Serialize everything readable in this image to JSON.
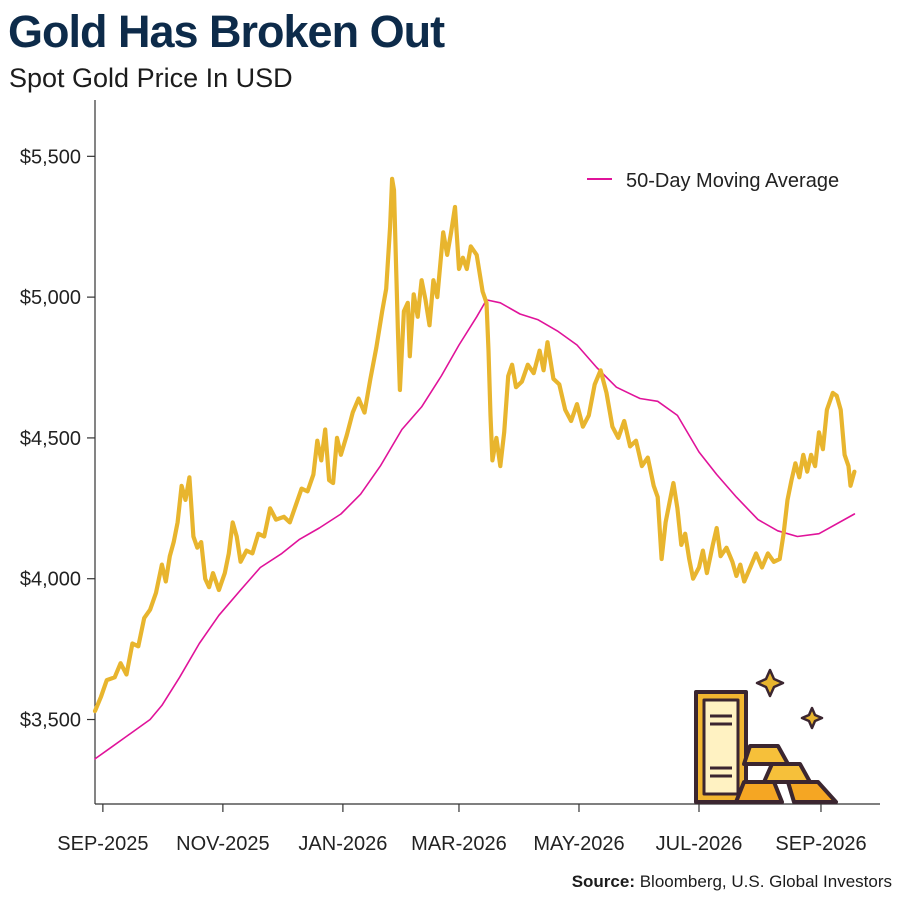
{
  "header": {
    "title": "Gold Has Broken Out",
    "subtitle": "Spot Gold Price In USD"
  },
  "source": {
    "label": "Source:",
    "text": "Bloomberg, U.S. Global Investors"
  },
  "colors": {
    "title": "#0d2b4a",
    "price_line": "#e8b52e",
    "ma_line": "#e0139a",
    "axis": "#333333"
  },
  "illustration": "gold-bars-icon",
  "chart_data": {
    "type": "line",
    "title": "Gold Has Broken Out",
    "subtitle": "Spot Gold Price In USD",
    "xlabel": "",
    "ylabel": "",
    "x_range": [
      "2025-08-28",
      "2026-10-01"
    ],
    "ylim": [
      3200,
      5700
    ],
    "yticks": [
      3500,
      4000,
      4500,
      5000,
      5500
    ],
    "ytick_labels": [
      "$3,500",
      "$4,000",
      "$4,500",
      "$5,000",
      "$5,500"
    ],
    "xticks": [
      "2025-09-01",
      "2025-11-01",
      "2026-01-01",
      "2026-03-01",
      "2026-05-01",
      "2026-07-01",
      "2026-09-01"
    ],
    "xtick_labels": [
      "SEP-2025",
      "NOV-2025",
      "JAN-2026",
      "MAR-2026",
      "MAY-2026",
      "JUL-2026",
      "SEP-2026"
    ],
    "grid": false,
    "legend": {
      "position": "top-right",
      "entries": [
        "50-Day Moving Average"
      ]
    },
    "series": [
      {
        "key": "spot",
        "points": [
          [
            "2025-08-28",
            3530
          ],
          [
            "2025-08-31",
            3580
          ],
          [
            "2025-09-03",
            3640
          ],
          [
            "2025-09-07",
            3650
          ],
          [
            "2025-09-10",
            3700
          ],
          [
            "2025-09-13",
            3660
          ],
          [
            "2025-09-16",
            3770
          ],
          [
            "2025-09-19",
            3760
          ],
          [
            "2025-09-22",
            3860
          ],
          [
            "2025-09-25",
            3890
          ],
          [
            "2025-09-28",
            3950
          ],
          [
            "2025-10-01",
            4050
          ],
          [
            "2025-10-03",
            3990
          ],
          [
            "2025-10-05",
            4080
          ],
          [
            "2025-10-07",
            4130
          ],
          [
            "2025-10-09",
            4200
          ],
          [
            "2025-10-11",
            4330
          ],
          [
            "2025-10-13",
            4280
          ],
          [
            "2025-10-15",
            4360
          ],
          [
            "2025-10-17",
            4150
          ],
          [
            "2025-10-19",
            4110
          ],
          [
            "2025-10-21",
            4130
          ],
          [
            "2025-10-23",
            4000
          ],
          [
            "2025-10-25",
            3970
          ],
          [
            "2025-10-27",
            4020
          ],
          [
            "2025-10-30",
            3960
          ],
          [
            "2025-11-02",
            4020
          ],
          [
            "2025-11-04",
            4090
          ],
          [
            "2025-11-06",
            4200
          ],
          [
            "2025-11-08",
            4150
          ],
          [
            "2025-11-10",
            4060
          ],
          [
            "2025-11-13",
            4100
          ],
          [
            "2025-11-16",
            4090
          ],
          [
            "2025-11-19",
            4160
          ],
          [
            "2025-11-22",
            4150
          ],
          [
            "2025-11-25",
            4250
          ],
          [
            "2025-11-28",
            4210
          ],
          [
            "2025-12-02",
            4220
          ],
          [
            "2025-12-05",
            4200
          ],
          [
            "2025-12-08",
            4260
          ],
          [
            "2025-12-11",
            4320
          ],
          [
            "2025-12-14",
            4310
          ],
          [
            "2025-12-17",
            4370
          ],
          [
            "2025-12-19",
            4490
          ],
          [
            "2025-12-21",
            4420
          ],
          [
            "2025-12-23",
            4530
          ],
          [
            "2025-12-25",
            4350
          ],
          [
            "2025-12-27",
            4340
          ],
          [
            "2025-12-29",
            4500
          ],
          [
            "2025-12-31",
            4440
          ],
          [
            "2026-01-03",
            4510
          ],
          [
            "2026-01-06",
            4590
          ],
          [
            "2026-01-09",
            4640
          ],
          [
            "2026-01-12",
            4590
          ],
          [
            "2026-01-15",
            4710
          ],
          [
            "2026-01-18",
            4820
          ],
          [
            "2026-01-21",
            4950
          ],
          [
            "2026-01-23",
            5030
          ],
          [
            "2026-01-25",
            5250
          ],
          [
            "2026-01-26",
            5420
          ],
          [
            "2026-01-27",
            5380
          ],
          [
            "2026-01-28",
            5120
          ],
          [
            "2026-01-29",
            4870
          ],
          [
            "2026-01-30",
            4670
          ],
          [
            "2026-02-01",
            4950
          ],
          [
            "2026-02-03",
            4980
          ],
          [
            "2026-02-04",
            4790
          ],
          [
            "2026-02-06",
            5010
          ],
          [
            "2026-02-08",
            4930
          ],
          [
            "2026-02-10",
            5060
          ],
          [
            "2026-02-12",
            4990
          ],
          [
            "2026-02-14",
            4900
          ],
          [
            "2026-02-16",
            5060
          ],
          [
            "2026-02-18",
            5000
          ],
          [
            "2026-02-21",
            5230
          ],
          [
            "2026-02-23",
            5150
          ],
          [
            "2026-02-25",
            5230
          ],
          [
            "2026-02-27",
            5320
          ],
          [
            "2026-03-01",
            5100
          ],
          [
            "2026-03-03",
            5140
          ],
          [
            "2026-03-05",
            5100
          ],
          [
            "2026-03-07",
            5180
          ],
          [
            "2026-03-10",
            5150
          ],
          [
            "2026-03-13",
            5020
          ],
          [
            "2026-03-15",
            4980
          ],
          [
            "2026-03-16",
            4810
          ],
          [
            "2026-03-17",
            4580
          ],
          [
            "2026-03-18",
            4420
          ],
          [
            "2026-03-20",
            4500
          ],
          [
            "2026-03-22",
            4400
          ],
          [
            "2026-03-24",
            4520
          ],
          [
            "2026-03-26",
            4720
          ],
          [
            "2026-03-28",
            4760
          ],
          [
            "2026-03-30",
            4680
          ],
          [
            "2026-04-02",
            4700
          ],
          [
            "2026-04-05",
            4760
          ],
          [
            "2026-04-08",
            4730
          ],
          [
            "2026-04-11",
            4810
          ],
          [
            "2026-04-13",
            4740
          ],
          [
            "2026-04-15",
            4840
          ],
          [
            "2026-04-18",
            4710
          ],
          [
            "2026-04-21",
            4690
          ],
          [
            "2026-04-24",
            4600
          ],
          [
            "2026-04-27",
            4560
          ],
          [
            "2026-04-30",
            4620
          ],
          [
            "2026-05-03",
            4540
          ],
          [
            "2026-05-06",
            4580
          ],
          [
            "2026-05-09",
            4690
          ],
          [
            "2026-05-12",
            4740
          ],
          [
            "2026-05-15",
            4660
          ],
          [
            "2026-05-18",
            4540
          ],
          [
            "2026-05-21",
            4500
          ],
          [
            "2026-05-24",
            4560
          ],
          [
            "2026-05-27",
            4470
          ],
          [
            "2026-05-30",
            4490
          ],
          [
            "2026-06-02",
            4400
          ],
          [
            "2026-06-05",
            4430
          ],
          [
            "2026-06-08",
            4330
          ],
          [
            "2026-06-10",
            4290
          ],
          [
            "2026-06-12",
            4070
          ],
          [
            "2026-06-14",
            4200
          ],
          [
            "2026-06-16",
            4270
          ],
          [
            "2026-06-18",
            4340
          ],
          [
            "2026-06-20",
            4250
          ],
          [
            "2026-06-22",
            4120
          ],
          [
            "2026-06-24",
            4160
          ],
          [
            "2026-06-26",
            4070
          ],
          [
            "2026-06-28",
            4000
          ],
          [
            "2026-07-01",
            4040
          ],
          [
            "2026-07-03",
            4100
          ],
          [
            "2026-07-05",
            4020
          ],
          [
            "2026-07-08",
            4120
          ],
          [
            "2026-07-10",
            4180
          ],
          [
            "2026-07-12",
            4080
          ],
          [
            "2026-07-15",
            4110
          ],
          [
            "2026-07-18",
            4060
          ],
          [
            "2026-07-20",
            4010
          ],
          [
            "2026-07-22",
            4050
          ],
          [
            "2026-07-24",
            3990
          ],
          [
            "2026-07-27",
            4040
          ],
          [
            "2026-07-30",
            4090
          ],
          [
            "2026-08-02",
            4040
          ],
          [
            "2026-08-05",
            4090
          ],
          [
            "2026-08-08",
            4060
          ],
          [
            "2026-08-11",
            4070
          ],
          [
            "2026-08-13",
            4160
          ],
          [
            "2026-08-15",
            4280
          ],
          [
            "2026-08-17",
            4350
          ],
          [
            "2026-08-19",
            4410
          ],
          [
            "2026-08-21",
            4360
          ],
          [
            "2026-08-23",
            4440
          ],
          [
            "2026-08-25",
            4380
          ],
          [
            "2026-08-27",
            4440
          ],
          [
            "2026-08-29",
            4400
          ],
          [
            "2026-08-31",
            4520
          ],
          [
            "2026-09-02",
            4460
          ],
          [
            "2026-09-04",
            4600
          ],
          [
            "2026-09-07",
            4660
          ],
          [
            "2026-09-09",
            4650
          ],
          [
            "2026-09-11",
            4600
          ],
          [
            "2026-09-13",
            4440
          ],
          [
            "2026-09-15",
            4400
          ],
          [
            "2026-09-16",
            4330
          ],
          [
            "2026-09-18",
            4380
          ]
        ]
      },
      {
        "key": "ma50",
        "name": "50-Day Moving Average",
        "points": [
          [
            "2025-08-28",
            3360
          ],
          [
            "2025-09-05",
            3400
          ],
          [
            "2025-09-15",
            3450
          ],
          [
            "2025-09-25",
            3500
          ],
          [
            "2025-10-01",
            3550
          ],
          [
            "2025-10-10",
            3650
          ],
          [
            "2025-10-20",
            3770
          ],
          [
            "2025-10-30",
            3870
          ],
          [
            "2025-11-10",
            3960
          ],
          [
            "2025-11-20",
            4040
          ],
          [
            "2025-12-01",
            4090
          ],
          [
            "2025-12-10",
            4140
          ],
          [
            "2025-12-20",
            4180
          ],
          [
            "2025-12-31",
            4230
          ],
          [
            "2026-01-10",
            4300
          ],
          [
            "2026-01-20",
            4400
          ],
          [
            "2026-01-31",
            4530
          ],
          [
            "2026-02-10",
            4610
          ],
          [
            "2026-02-20",
            4720
          ],
          [
            "2026-03-01",
            4830
          ],
          [
            "2026-03-10",
            4930
          ],
          [
            "2026-03-15",
            4990
          ],
          [
            "2026-03-22",
            4980
          ],
          [
            "2026-04-01",
            4940
          ],
          [
            "2026-04-10",
            4920
          ],
          [
            "2026-04-20",
            4880
          ],
          [
            "2026-04-30",
            4830
          ],
          [
            "2026-05-10",
            4750
          ],
          [
            "2026-05-20",
            4680
          ],
          [
            "2026-06-01",
            4640
          ],
          [
            "2026-06-10",
            4630
          ],
          [
            "2026-06-20",
            4580
          ],
          [
            "2026-07-01",
            4450
          ],
          [
            "2026-07-10",
            4370
          ],
          [
            "2026-07-20",
            4290
          ],
          [
            "2026-07-31",
            4210
          ],
          [
            "2026-08-10",
            4170
          ],
          [
            "2026-08-20",
            4150
          ],
          [
            "2026-08-31",
            4160
          ],
          [
            "2026-09-18",
            4230
          ]
        ]
      }
    ]
  }
}
